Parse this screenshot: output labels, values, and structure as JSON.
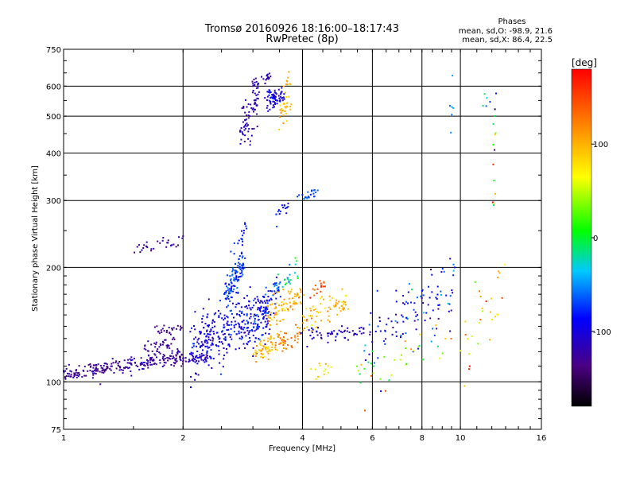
{
  "chart_data": {
    "type": "scatter",
    "title": "Tromsø 20160926 18:16:00–18:17:43",
    "subtitle": "RwPretec (8p)",
    "xlabel": "Frequency [MHz]",
    "ylabel": "Stationary phase Virtual Height [km]",
    "x_scale": "log",
    "y_scale": "log",
    "xlim": [
      1,
      16
    ],
    "ylim": [
      75,
      750
    ],
    "x_ticks": [
      1,
      2,
      4,
      6,
      8,
      10,
      16
    ],
    "x_tick_labels": [
      "1",
      "2",
      "4",
      "6",
      "8",
      "10",
      "16"
    ],
    "y_ticks": [
      75,
      100,
      200,
      300,
      400,
      500,
      600,
      750
    ],
    "y_tick_labels": [
      "75",
      "100",
      "200",
      "300",
      "400",
      "500",
      "600",
      "750"
    ],
    "grid": true,
    "stats": {
      "heading": "Phases",
      "line_o": "mean, sd,O: -98.9, 21.6",
      "line_x": "mean, sd,X: 86.4, 22.5"
    },
    "colorbar": {
      "label": "[deg]",
      "range": [
        -180,
        180
      ],
      "ticks": [
        -100,
        0,
        100
      ],
      "tick_labels": [
        "-100",
        "0",
        "100"
      ]
    },
    "clusters": [
      {
        "f_start": 1.0,
        "f_end": 1.45,
        "h_start": 104,
        "h_end": 111,
        "spread": 2.5,
        "phase": -130,
        "phase_spread": 10,
        "count": 120
      },
      {
        "f_start": 1.45,
        "f_end": 2.0,
        "h_start": 111,
        "h_end": 116,
        "spread": 3,
        "phase": -125,
        "phase_spread": 10,
        "count": 120
      },
      {
        "f_start": 1.6,
        "f_end": 1.9,
        "h_start": 121,
        "h_end": 127,
        "spread": 3,
        "phase": -130,
        "phase_spread": 8,
        "count": 35
      },
      {
        "f_start": 1.7,
        "f_end": 2.0,
        "h_start": 136,
        "h_end": 139,
        "spread": 2,
        "phase": -135,
        "phase_spread": 8,
        "count": 25
      },
      {
        "f_start": 2.0,
        "f_end": 2.3,
        "h_start": 114,
        "h_end": 116,
        "spread": 2,
        "phase": -115,
        "phase_spread": 10,
        "count": 40
      },
      {
        "f_start": 1.5,
        "f_end": 2.0,
        "h_start": 223,
        "h_end": 235,
        "spread": 5,
        "phase": -125,
        "phase_spread": 10,
        "count": 30
      },
      {
        "f_start": 2.1,
        "f_end": 3.3,
        "h_start": 125,
        "h_end": 150,
        "spread": 12,
        "phase": -95,
        "phase_spread": 14,
        "count": 330
      },
      {
        "f_start": 2.55,
        "f_end": 2.85,
        "h_start": 170,
        "h_end": 205,
        "spread": 10,
        "phase": -75,
        "phase_spread": 10,
        "count": 110
      },
      {
        "f_start": 2.65,
        "f_end": 2.9,
        "h_start": 212,
        "h_end": 258,
        "spread": 5,
        "phase": -85,
        "phase_spread": 10,
        "count": 16
      },
      {
        "f_start": 2.9,
        "f_end": 3.5,
        "h_start": 135,
        "h_end": 180,
        "spread": 10,
        "phase": -85,
        "phase_spread": 18,
        "count": 70
      },
      {
        "f_start": 3.0,
        "f_end": 3.6,
        "h_start": 118,
        "h_end": 130,
        "spread": 4,
        "phase": 95,
        "phase_spread": 15,
        "count": 60
      },
      {
        "f_start": 3.3,
        "f_end": 4.0,
        "h_start": 148,
        "h_end": 172,
        "spread": 8,
        "phase": 100,
        "phase_spread": 12,
        "count": 80
      },
      {
        "f_start": 3.4,
        "f_end": 4.0,
        "h_start": 124,
        "h_end": 134,
        "spread": 4,
        "phase": 125,
        "phase_spread": 10,
        "count": 40
      },
      {
        "f_start": 3.4,
        "f_end": 3.9,
        "h_start": 175,
        "h_end": 200,
        "spread": 8,
        "phase": -30,
        "phase_spread": 25,
        "count": 24
      },
      {
        "f_start": 4.0,
        "f_end": 5.2,
        "h_start": 146,
        "h_end": 164,
        "spread": 6,
        "phase": 95,
        "phase_spread": 15,
        "count": 70
      },
      {
        "f_start": 4.2,
        "f_end": 4.6,
        "h_start": 168,
        "h_end": 182,
        "spread": 5,
        "phase": 140,
        "phase_spread": 10,
        "count": 16
      },
      {
        "f_start": 3.9,
        "f_end": 5.8,
        "h_start": 130,
        "h_end": 137,
        "spread": 3,
        "phase": -110,
        "phase_spread": 12,
        "count": 55
      },
      {
        "f_start": 4.0,
        "f_end": 4.8,
        "h_start": 104,
        "h_end": 110,
        "spread": 3,
        "phase": 80,
        "phase_spread": 15,
        "count": 14
      },
      {
        "f_start": 5.8,
        "f_end": 9.8,
        "h_start": 130,
        "h_end": 175,
        "spread": 15,
        "phase": -90,
        "phase_spread": 30,
        "count": 110
      },
      {
        "f_start": 5.5,
        "f_end": 9.5,
        "h_start": 103,
        "h_end": 128,
        "spread": 8,
        "phase": 40,
        "phase_spread": 70,
        "count": 40
      },
      {
        "f_start": 10.0,
        "f_end": 13.0,
        "h_start": 120,
        "h_end": 180,
        "spread": 18,
        "phase": 80,
        "phase_spread": 40,
        "count": 30
      },
      {
        "f_start": 2.78,
        "f_end": 3.1,
        "h_start": 430,
        "h_end": 560,
        "spread": 30,
        "phase": -115,
        "phase_spread": 10,
        "count": 70
      },
      {
        "f_start": 3.0,
        "f_end": 3.3,
        "h_start": 600,
        "h_end": 640,
        "spread": 12,
        "phase": -115,
        "phase_spread": 10,
        "count": 30
      },
      {
        "f_start": 3.25,
        "f_end": 3.58,
        "h_start": 545,
        "h_end": 575,
        "spread": 15,
        "phase": -100,
        "phase_spread": 12,
        "count": 70
      },
      {
        "f_start": 3.5,
        "f_end": 3.72,
        "h_start": 490,
        "h_end": 560,
        "spread": 25,
        "phase": 95,
        "phase_spread": 8,
        "count": 30
      },
      {
        "f_start": 3.6,
        "f_end": 3.72,
        "h_start": 580,
        "h_end": 630,
        "spread": 15,
        "phase": 105,
        "phase_spread": 8,
        "count": 8
      },
      {
        "f_start": 3.4,
        "f_end": 3.7,
        "h_start": 270,
        "h_end": 295,
        "spread": 8,
        "phase": -80,
        "phase_spread": 10,
        "count": 16
      },
      {
        "f_start": 3.9,
        "f_end": 4.4,
        "h_start": 300,
        "h_end": 318,
        "spread": 5,
        "phase": -70,
        "phase_spread": 10,
        "count": 22
      },
      {
        "f_start": 9.5,
        "f_end": 9.6,
        "h_start": 430,
        "h_end": 610,
        "spread": 30,
        "phase": -50,
        "phase_spread": 20,
        "count": 6
      },
      {
        "f_start": 12.1,
        "f_end": 12.3,
        "h_start": 260,
        "h_end": 600,
        "spread": 40,
        "phase": 40,
        "phase_spread": 90,
        "count": 14
      },
      {
        "f_start": 11.5,
        "f_end": 11.9,
        "h_start": 540,
        "h_end": 600,
        "spread": 30,
        "phase": -20,
        "phase_spread": 40,
        "count": 5
      }
    ]
  }
}
